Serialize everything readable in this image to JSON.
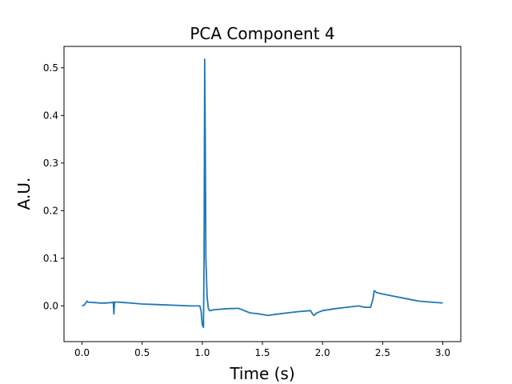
{
  "chart_data": {
    "type": "line",
    "title": "PCA Component 4",
    "xlabel": "Time (s)",
    "ylabel": "A.U.",
    "xlim": [
      -0.15,
      3.15
    ],
    "ylim": [
      -0.075,
      0.545
    ],
    "xticks": [
      0.0,
      0.5,
      1.0,
      1.5,
      2.0,
      2.5,
      3.0
    ],
    "xtick_labels": [
      "0.0",
      "0.5",
      "1.0",
      "1.5",
      "2.0",
      "2.5",
      "3.0"
    ],
    "yticks": [
      0.0,
      0.1,
      0.2,
      0.3,
      0.4,
      0.5
    ],
    "ytick_labels": [
      "0.0",
      "0.1",
      "0.2",
      "0.3",
      "0.4",
      "0.5"
    ],
    "grid": false,
    "series": [
      {
        "color": "#1f77b4",
        "x": [
          0.0,
          0.02,
          0.04,
          0.05,
          0.1,
          0.15,
          0.2,
          0.25,
          0.26,
          0.265,
          0.27,
          0.3,
          0.35,
          0.4,
          0.5,
          0.6,
          0.7,
          0.8,
          0.9,
          0.98,
          0.99,
          1.0,
          1.01,
          1.015,
          1.02,
          1.025,
          1.03,
          1.04,
          1.05,
          1.06,
          1.1,
          1.2,
          1.3,
          1.35,
          1.4,
          1.45,
          1.5,
          1.55,
          1.6,
          1.7,
          1.8,
          1.9,
          1.92,
          1.93,
          1.95,
          2.0,
          2.1,
          2.2,
          2.3,
          2.35,
          2.4,
          2.42,
          2.43,
          2.45,
          2.5,
          2.6,
          2.7,
          2.8,
          2.9,
          3.0
        ],
        "y": [
          0.0,
          0.002,
          0.01,
          0.008,
          0.007,
          0.006,
          0.006,
          0.007,
          0.008,
          -0.017,
          0.008,
          0.008,
          0.007,
          0.006,
          0.004,
          0.003,
          0.002,
          0.001,
          0.0,
          0.0,
          -0.01,
          -0.04,
          -0.045,
          0.1,
          0.518,
          0.35,
          0.1,
          0.02,
          -0.005,
          -0.01,
          -0.008,
          -0.006,
          -0.005,
          -0.01,
          -0.015,
          -0.016,
          -0.018,
          -0.02,
          -0.018,
          -0.015,
          -0.012,
          -0.01,
          -0.018,
          -0.02,
          -0.015,
          -0.01,
          -0.006,
          -0.003,
          0.0,
          -0.003,
          -0.003,
          0.015,
          0.032,
          0.028,
          0.025,
          0.02,
          0.015,
          0.01,
          0.008,
          0.006
        ]
      }
    ]
  }
}
